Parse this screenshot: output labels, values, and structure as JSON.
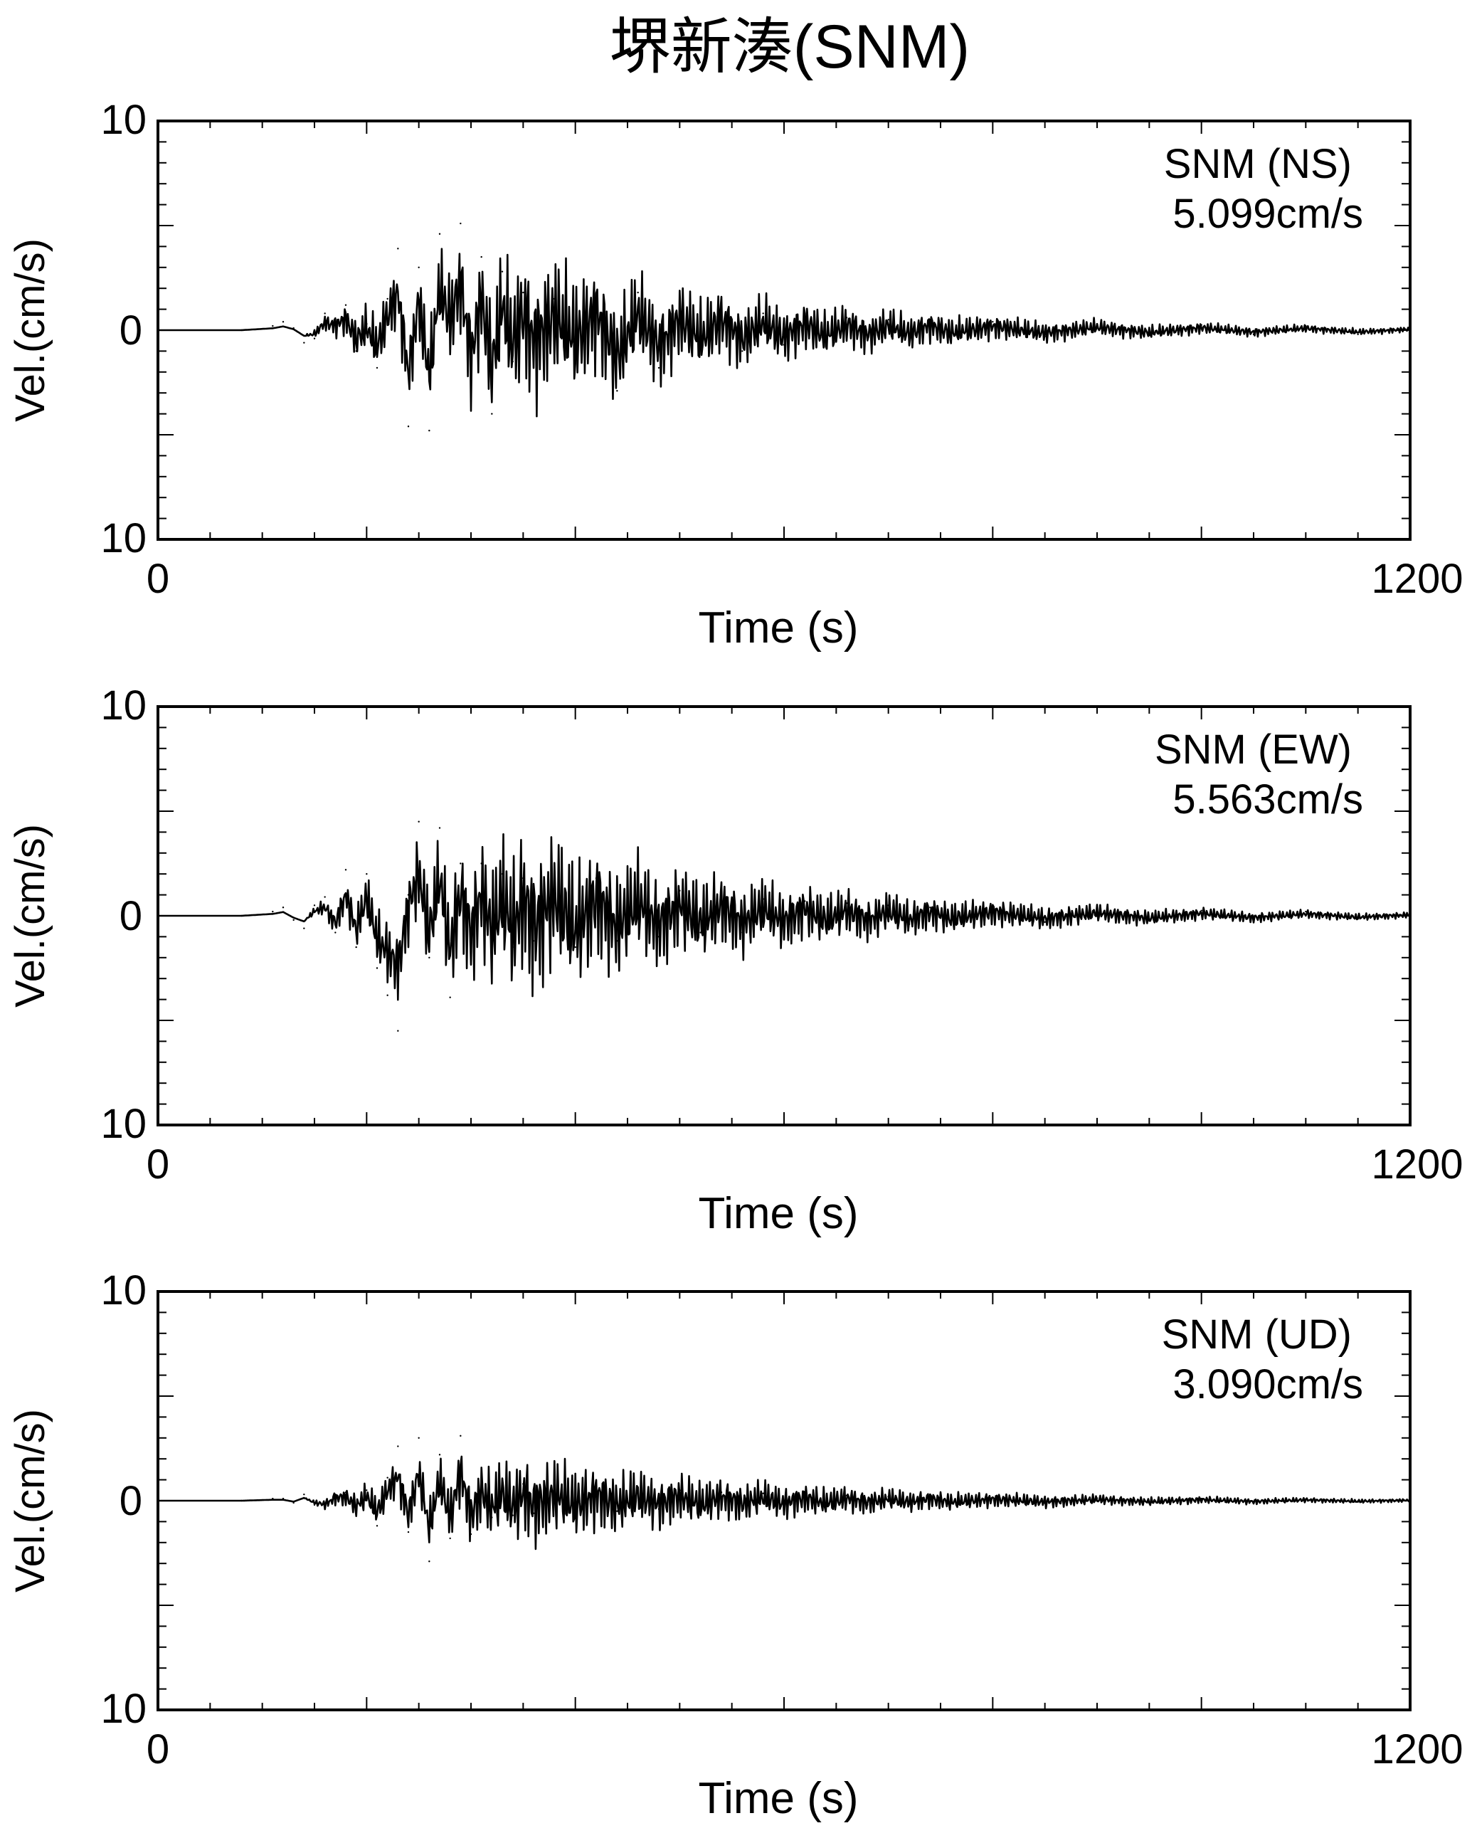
{
  "title": "堺新湊(SNM)",
  "charts": [
    {
      "station": "SNM",
      "component": "NS",
      "label": "SNM (NS)",
      "peak_text": "5.099cm/s",
      "peak": 5.099,
      "xlabel": "Time (s)",
      "ylabel": "Vel.(cm/s)",
      "xlim": [
        0,
        1200
      ],
      "ylim": [
        -10,
        10
      ],
      "y_tick_labels": {
        "top": "10",
        "middle": "0",
        "bottom": "10"
      },
      "x_tick_labels": {
        "left": "0",
        "right": "1200"
      }
    },
    {
      "station": "SNM",
      "component": "EW",
      "label": "SNM (EW)",
      "peak_text": "5.563cm/s",
      "peak": 5.563,
      "xlabel": "Time (s)",
      "ylabel": "Vel.(cm/s)",
      "xlim": [
        0,
        1200
      ],
      "ylim": [
        -10,
        10
      ],
      "y_tick_labels": {
        "top": "10",
        "middle": "0",
        "bottom": "10"
      },
      "x_tick_labels": {
        "left": "0",
        "right": "1200"
      }
    },
    {
      "station": "SNM",
      "component": "UD",
      "label": "SNM (UD)",
      "peak_text": "3.090cm/s",
      "peak": 3.09,
      "xlabel": "Time (s)",
      "ylabel": "Vel.(cm/s)",
      "xlim": [
        0,
        1200
      ],
      "ylim": [
        -10,
        10
      ],
      "y_tick_labels": {
        "top": "10",
        "middle": "0",
        "bottom": "10"
      },
      "x_tick_labels": {
        "left": "0",
        "right": "1200"
      }
    }
  ],
  "chart_data": [
    {
      "type": "line",
      "title": "SNM (NS)",
      "xlabel": "Time (s)",
      "ylabel": "Vel.(cm/s)",
      "xlim": [
        0,
        1200
      ],
      "ylim": [
        -10,
        10
      ],
      "grid": false,
      "annotations": [
        "SNM (NS)",
        "5.099cm/s"
      ],
      "series": [
        {
          "name": "",
          "x": [
            0,
            80,
            110,
            120,
            130,
            140,
            150,
            160,
            170,
            180,
            190,
            200,
            210,
            220,
            230,
            240,
            250,
            260,
            270,
            280,
            290,
            300,
            310,
            320,
            330,
            340,
            350,
            360,
            380,
            400,
            420,
            440,
            460,
            480,
            500,
            520,
            540,
            560,
            580,
            600,
            620,
            640,
            660,
            680,
            700,
            720,
            740,
            760,
            800,
            850,
            900,
            950,
            1000,
            1050,
            1100,
            1150,
            1200
          ],
          "y": [
            0,
            0,
            0.2,
            0.4,
            0.1,
            -0.6,
            -0.4,
            0.8,
            0.5,
            1.2,
            -1.0,
            0.3,
            -1.8,
            1.5,
            3.9,
            -4.6,
            3.0,
            -4.8,
            4.6,
            1.0,
            5.1,
            -3.0,
            3.5,
            -4.0,
            2.8,
            -1.5,
            1.8,
            -1.2,
            1.5,
            -1.0,
            1.8,
            -2.9,
            1.8,
            -1.8,
            1.2,
            -0.9,
            1.1,
            -1.0,
            0.8,
            -0.7,
            0.7,
            -0.6,
            0.6,
            -0.5,
            0.5,
            -0.4,
            0.5,
            -0.3,
            0.4,
            -0.3,
            0.3,
            -0.25,
            0.25,
            -0.2,
            0.2,
            -0.2,
            0.1
          ]
        }
      ]
    },
    {
      "type": "line",
      "title": "SNM (EW)",
      "xlabel": "Time (s)",
      "ylabel": "Vel.(cm/s)",
      "xlim": [
        0,
        1200
      ],
      "ylim": [
        -10,
        10
      ],
      "grid": false,
      "annotations": [
        "SNM (EW)",
        "5.563cm/s"
      ],
      "series": [
        {
          "name": "",
          "x": [
            0,
            80,
            110,
            120,
            130,
            140,
            150,
            160,
            170,
            180,
            190,
            200,
            210,
            220,
            230,
            240,
            250,
            260,
            270,
            280,
            290,
            300,
            310,
            320,
            330,
            340,
            350,
            360,
            380,
            400,
            420,
            440,
            460,
            480,
            500,
            520,
            540,
            560,
            580,
            600,
            620,
            640,
            660,
            680,
            700,
            720,
            740,
            760,
            800,
            850,
            900,
            950,
            1000,
            1050,
            1100,
            1150,
            1200
          ],
          "y": [
            0,
            0,
            0.2,
            0.4,
            -0.2,
            -0.6,
            0.5,
            0.9,
            -0.8,
            2.2,
            -1.5,
            2.0,
            -2.5,
            -3.8,
            -5.5,
            1.0,
            4.5,
            -2.0,
            4.2,
            -3.9,
            2.5,
            -2.0,
            2.5,
            -1.8,
            2.0,
            -1.5,
            1.8,
            -1.2,
            2.0,
            -1.5,
            1.8,
            -1.2,
            1.5,
            -1.0,
            1.2,
            -0.8,
            1.0,
            -0.8,
            0.8,
            -0.6,
            0.7,
            -0.5,
            0.6,
            -0.5,
            0.5,
            -0.4,
            0.4,
            -0.3,
            0.4,
            -0.3,
            0.3,
            -0.25,
            0.25,
            -0.2,
            0.2,
            -0.15,
            0.1
          ]
        }
      ]
    },
    {
      "type": "line",
      "title": "SNM (UD)",
      "xlabel": "Time (s)",
      "ylabel": "Vel.(cm/s)",
      "xlim": [
        0,
        1200
      ],
      "ylim": [
        -10,
        10
      ],
      "grid": false,
      "annotations": [
        "SNM (UD)",
        "3.090cm/s"
      ],
      "series": [
        {
          "name": "",
          "x": [
            0,
            80,
            110,
            120,
            130,
            140,
            150,
            160,
            170,
            180,
            190,
            200,
            210,
            220,
            230,
            240,
            250,
            260,
            270,
            280,
            290,
            300,
            310,
            320,
            330,
            340,
            350,
            360,
            380,
            400,
            420,
            440,
            460,
            480,
            500,
            520,
            540,
            560,
            580,
            600,
            620,
            640,
            660,
            680,
            700,
            720,
            740,
            760,
            800,
            850,
            900,
            950,
            1000,
            1050,
            1100,
            1150,
            1200
          ],
          "y": [
            0,
            0,
            0.1,
            0.1,
            -0.1,
            0.3,
            -0.2,
            -0.4,
            0.3,
            0.4,
            -0.6,
            0.5,
            -1.2,
            1.1,
            2.6,
            -1.5,
            3.0,
            -2.9,
            2.2,
            -1.8,
            3.1,
            -1.6,
            1.0,
            -0.8,
            0.9,
            -0.7,
            0.8,
            -0.6,
            0.7,
            -0.5,
            0.6,
            -0.5,
            0.5,
            -0.4,
            0.5,
            -0.4,
            0.4,
            -0.3,
            0.35,
            -0.3,
            0.3,
            -0.25,
            0.25,
            -0.2,
            0.2,
            -0.15,
            0.2,
            -0.15,
            0.15,
            -0.12,
            0.12,
            -0.1,
            0.1,
            -0.08,
            0.08,
            -0.06,
            0.05
          ]
        }
      ]
    }
  ]
}
